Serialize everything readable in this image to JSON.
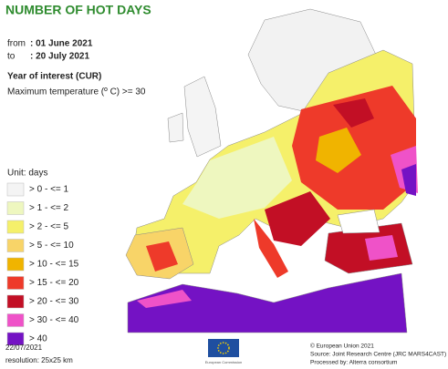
{
  "header": {
    "title": "NUMBER OF HOT DAYS",
    "from_label": "from",
    "from_date": ": 01 June 2021",
    "to_label": "to",
    "to_date": ": 20 July 2021",
    "year": "Year of interest (CUR)",
    "indicator": "Maximum temperature (º C) >= 30"
  },
  "legend": {
    "title": "Unit: days",
    "items": [
      {
        "label": "> 0 - <= 1",
        "color": "#f4f4f4"
      },
      {
        "label": "> 1 - <= 2",
        "color": "#eef7bf"
      },
      {
        "label": "> 2 - <= 5",
        "color": "#f5f06a"
      },
      {
        "label": "> 5 - <= 10",
        "color": "#f8d468"
      },
      {
        "label": "> 10 - <= 15",
        "color": "#f0b400"
      },
      {
        "label": "> 15 - <= 20",
        "color": "#ee3a2a"
      },
      {
        "label": "> 20 - <= 30",
        "color": "#c20f25"
      },
      {
        "label": "> 30 - <= 40",
        "color": "#ef52c8"
      },
      {
        "label": "> 40",
        "color": "#7412c4"
      }
    ]
  },
  "footer": {
    "date": "22/07/2021",
    "resolution": "resolution: 25x25 km",
    "logo_text": "European Commission",
    "copyright": "© European Union 2021",
    "source": "Source: Joint Research Centre (JRC MARS4CAST)",
    "processed": "Processed by: Alterra consortium"
  }
}
